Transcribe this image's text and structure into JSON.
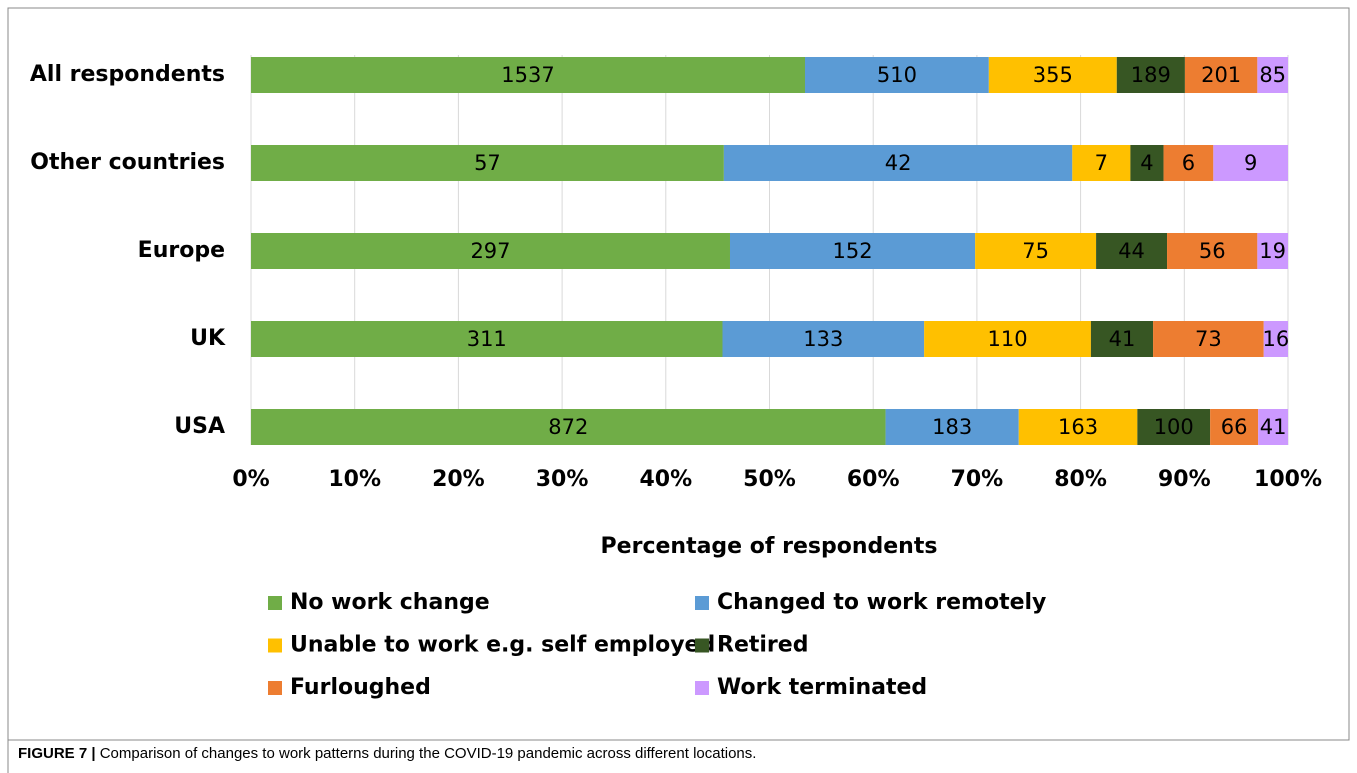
{
  "chart_data": {
    "type": "bar",
    "orientation": "horizontal",
    "stack": "percent",
    "categories": [
      "All respondents",
      "Other countries",
      "Europe",
      "UK",
      "USA"
    ],
    "series": [
      {
        "name": "No work change",
        "color": "#70ad47",
        "values": [
          1537,
          57,
          297,
          311,
          872
        ]
      },
      {
        "name": "Changed to work remotely",
        "color": "#5b9bd5",
        "values": [
          510,
          42,
          152,
          133,
          183
        ]
      },
      {
        "name": "Unable to work e.g. self employed",
        "color": "#ffc000",
        "values": [
          355,
          7,
          75,
          110,
          163
        ]
      },
      {
        "name": "Retired",
        "color": "#375623",
        "values": [
          189,
          4,
          44,
          41,
          100
        ]
      },
      {
        "name": "Furloughed",
        "color": "#ed7d31",
        "values": [
          201,
          6,
          56,
          73,
          66
        ]
      },
      {
        "name": "Work terminated",
        "color": "#cc99ff",
        "values": [
          85,
          9,
          19,
          16,
          41
        ]
      }
    ],
    "xlabel": "Percentage of respondents",
    "xlim": [
      0,
      100
    ],
    "xticks": [
      {
        "value": 0,
        "label": "0%"
      },
      {
        "value": 10,
        "label": "10%"
      },
      {
        "value": 20,
        "label": "20%"
      },
      {
        "value": 30,
        "label": "30%"
      },
      {
        "value": 40,
        "label": "40%"
      },
      {
        "value": 50,
        "label": "50%"
      },
      {
        "value": 60,
        "label": "60%"
      },
      {
        "value": 70,
        "label": "70%"
      },
      {
        "value": 80,
        "label": "80%"
      },
      {
        "value": 90,
        "label": "90%"
      },
      {
        "value": 100,
        "label": "100%"
      }
    ],
    "grid": true,
    "legend": "bottom"
  },
  "caption_label": "FIGURE 7 |",
  "caption": "Comparison of changes to work patterns during the COVID-19 pandemic across different locations."
}
